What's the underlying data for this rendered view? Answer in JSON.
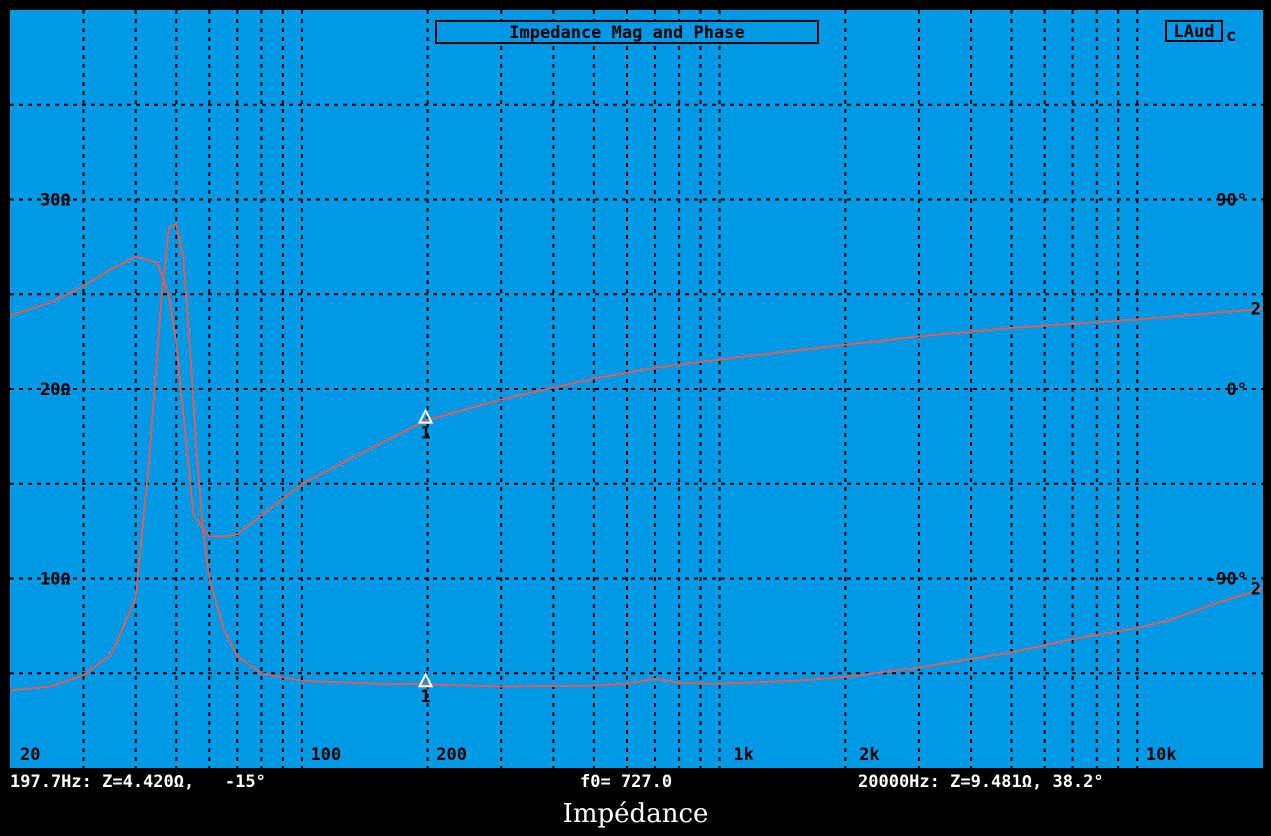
{
  "chart_data": {
    "type": "line",
    "title": "Impedance Mag and Phase",
    "badge": "LAud",
    "badge_suffix": "c",
    "x_scale": "log",
    "xlim": [
      20,
      20000
    ],
    "x_tick_labels": [
      {
        "value": 20,
        "label": "20"
      },
      {
        "value": 100,
        "label": "100"
      },
      {
        "value": 200,
        "label": "200"
      },
      {
        "value": 1000,
        "label": "1k"
      },
      {
        "value": 2000,
        "label": "2k"
      },
      {
        "value": 10000,
        "label": "10k"
      }
    ],
    "y_left_ticks": [
      {
        "value": 100,
        "label": "10Ω"
      },
      {
        "value": 200,
        "label": "20Ω"
      },
      {
        "value": 300,
        "label": "30Ω"
      }
    ],
    "y_right_ticks": [
      {
        "value": -90,
        "label": "-90°"
      },
      {
        "value": 0,
        "label": "0°"
      },
      {
        "value": 90,
        "label": "90°"
      }
    ],
    "grid": true,
    "series": [
      {
        "kind": "impedance",
        "unit": "ohm",
        "ylim": [
          0,
          40
        ],
        "x": [
          20,
          25,
          30,
          35,
          40,
          43,
          46,
          48,
          50,
          52,
          54,
          56,
          58,
          60,
          65,
          70,
          80,
          100,
          150,
          197.7,
          300,
          500,
          600,
          700,
          800,
          1000,
          1500,
          2000,
          3000,
          5000,
          7000,
          10000,
          12000,
          15000,
          20000
        ],
        "y": [
          4.1,
          4.3,
          4.9,
          6.0,
          9.0,
          16.0,
          24.5,
          28.5,
          28.7,
          27.0,
          22.0,
          16.5,
          12.5,
          10.0,
          7.3,
          5.9,
          5.0,
          4.6,
          4.45,
          4.42,
          4.3,
          4.35,
          4.45,
          4.7,
          4.5,
          4.45,
          4.6,
          4.8,
          5.3,
          6.1,
          6.8,
          7.4,
          7.8,
          8.6,
          9.48
        ]
      },
      {
        "kind": "phase",
        "unit": "degree",
        "ylim": [
          -180,
          180
        ],
        "x": [
          20,
          25,
          30,
          35,
          40,
          45,
          48,
          50,
          55,
          60,
          65,
          70,
          80,
          100,
          150,
          197.7,
          300,
          500,
          700,
          1000,
          2000,
          3000,
          5000,
          10000,
          15000,
          20000
        ],
        "y": [
          35,
          41,
          49,
          57,
          63,
          60,
          45,
          22,
          -60,
          -70,
          -70,
          -69,
          -60,
          -45,
          -27,
          -15,
          -5,
          5,
          10,
          14,
          21,
          25,
          29,
          33,
          36,
          38.2
        ]
      }
    ],
    "markers": [
      {
        "x": 197.7,
        "impedance": 4.42,
        "phase": -15,
        "label": "1"
      }
    ],
    "end_labels": [
      {
        "series": "impedance",
        "label": "2"
      },
      {
        "series": "phase",
        "label": "2"
      }
    ]
  },
  "status": {
    "cursor": "197.7Hz: Z=4.420Ω,   -15°",
    "f0": "f0= 727.0",
    "end": "20000Hz: Z=9.481Ω, 38.2°"
  },
  "caption": "Impédance",
  "colors": {
    "background": "#0099e6",
    "curve": "#d9605a",
    "grid": "#000000",
    "marker": "#ffffff"
  }
}
